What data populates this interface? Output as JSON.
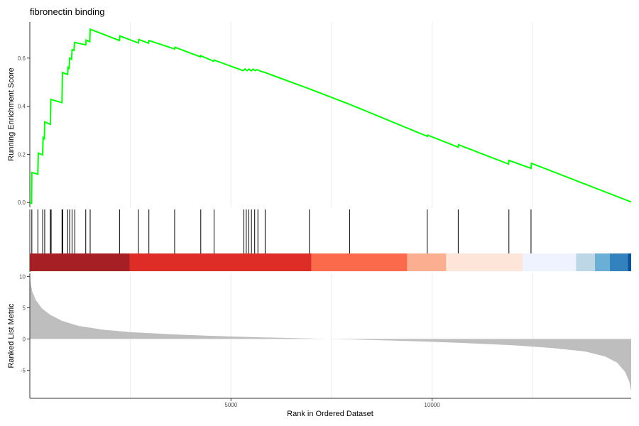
{
  "colors": {
    "es_line": "#00FF00",
    "hit_line": "#000000",
    "metric_fill": "#BEBEBE",
    "grid": "#EBEBEB",
    "axis": "#333333"
  },
  "chart_data": [
    {
      "panel": "running-enrichment",
      "type": "line",
      "title": "fibronectin binding",
      "ylabel": "Running Enrichment Score",
      "xlabel": "",
      "xlim": [
        0,
        14950
      ],
      "ylim": [
        -0.02,
        0.75
      ],
      "grid": true,
      "yticks": [
        0.0,
        0.2,
        0.4,
        0.6
      ],
      "ytick_labels": [
        "0.0",
        "0.2",
        "0.4",
        "0.6"
      ],
      "xgrid": [
        2500,
        5000,
        7500,
        10000,
        12500
      ],
      "points": [
        [
          0,
          -0.003
        ],
        [
          45,
          -0.003
        ],
        [
          50,
          0.125
        ],
        [
          200,
          0.118
        ],
        [
          210,
          0.205
        ],
        [
          320,
          0.198
        ],
        [
          330,
          0.27
        ],
        [
          360,
          0.265
        ],
        [
          370,
          0.335
        ],
        [
          510,
          0.325
        ],
        [
          520,
          0.428
        ],
        [
          800,
          0.415
        ],
        [
          810,
          0.54
        ],
        [
          940,
          0.532
        ],
        [
          950,
          0.562
        ],
        [
          980,
          0.558
        ],
        [
          990,
          0.6
        ],
        [
          1040,
          0.595
        ],
        [
          1050,
          0.635
        ],
        [
          1100,
          0.632
        ],
        [
          1110,
          0.665
        ],
        [
          1390,
          0.655
        ],
        [
          1400,
          0.675
        ],
        [
          1490,
          0.668
        ],
        [
          1500,
          0.72
        ],
        [
          2230,
          0.673
        ],
        [
          2240,
          0.692
        ],
        [
          2700,
          0.663
        ],
        [
          2710,
          0.677
        ],
        [
          2950,
          0.662
        ],
        [
          2960,
          0.673
        ],
        [
          3600,
          0.638
        ],
        [
          3610,
          0.645
        ],
        [
          4240,
          0.605
        ],
        [
          4250,
          0.61
        ],
        [
          4570,
          0.587
        ],
        [
          4580,
          0.592
        ],
        [
          5300,
          0.548
        ],
        [
          5350,
          0.555
        ],
        [
          5400,
          0.548
        ],
        [
          5450,
          0.554
        ],
        [
          5500,
          0.547
        ],
        [
          5550,
          0.554
        ],
        [
          5600,
          0.548
        ],
        [
          5650,
          0.552
        ],
        [
          5750,
          0.545
        ],
        [
          5850,
          0.54
        ],
        [
          6950,
          0.472
        ],
        [
          7950,
          0.408
        ],
        [
          9880,
          0.275
        ],
        [
          9890,
          0.28
        ],
        [
          10650,
          0.23
        ],
        [
          10660,
          0.24
        ],
        [
          11900,
          0.16
        ],
        [
          11910,
          0.175
        ],
        [
          12460,
          0.142
        ],
        [
          12470,
          0.163
        ],
        [
          14950,
          0.002
        ]
      ]
    },
    {
      "panel": "hit-positions",
      "type": "barcode",
      "hits": [
        0,
        50,
        200,
        320,
        370,
        510,
        530,
        800,
        820,
        940,
        990,
        1050,
        1120,
        1390,
        1500,
        2230,
        2700,
        2960,
        3600,
        4250,
        4580,
        5320,
        5380,
        5440,
        5510,
        5590,
        5670,
        5850,
        6950,
        7950,
        9880,
        10650,
        11910,
        12460
      ]
    },
    {
      "panel": "rank-color-bar",
      "type": "heatmap",
      "segments": [
        {
          "from": 0,
          "to": 2480,
          "color": "#A51F25"
        },
        {
          "from": 2480,
          "to": 7000,
          "color": "#DE2D26"
        },
        {
          "from": 7000,
          "to": 9380,
          "color": "#FB6A4A"
        },
        {
          "from": 9380,
          "to": 10350,
          "color": "#FCAE91"
        },
        {
          "from": 10350,
          "to": 12250,
          "color": "#FEE5D9"
        },
        {
          "from": 12250,
          "to": 13580,
          "color": "#EFF3FF"
        },
        {
          "from": 13580,
          "to": 14050,
          "color": "#BDD7E7"
        },
        {
          "from": 14050,
          "to": 14420,
          "color": "#6BAED6"
        },
        {
          "from": 14420,
          "to": 14870,
          "color": "#3182BD"
        },
        {
          "from": 14870,
          "to": 14950,
          "color": "#08519C"
        }
      ]
    },
    {
      "panel": "ranked-list-metric",
      "type": "area",
      "ylabel": "Ranked List Metric",
      "xlabel": "Rank in Ordered Dataset",
      "xlim": [
        0,
        14950
      ],
      "ylim": [
        -9.5,
        10.5
      ],
      "grid": true,
      "yticks": [
        -5,
        0,
        5,
        10
      ],
      "ytick_labels": [
        "-5",
        "0",
        "5",
        "10"
      ],
      "xticks": [
        5000,
        10000
      ],
      "xtick_labels": [
        "5000",
        "10000"
      ],
      "points": [
        [
          0,
          10.3
        ],
        [
          20,
          9.0
        ],
        [
          60,
          7.6
        ],
        [
          150,
          6.2
        ],
        [
          300,
          4.9
        ],
        [
          500,
          3.9
        ],
        [
          800,
          2.9
        ],
        [
          1200,
          2.1
        ],
        [
          1800,
          1.5
        ],
        [
          2500,
          1.1
        ],
        [
          3500,
          0.75
        ],
        [
          4500,
          0.5
        ],
        [
          5500,
          0.3
        ],
        [
          6500,
          0.15
        ],
        [
          7300,
          0.02
        ],
        [
          8000,
          -0.08
        ],
        [
          9000,
          -0.25
        ],
        [
          10000,
          -0.45
        ],
        [
          11000,
          -0.7
        ],
        [
          12000,
          -1.0
        ],
        [
          13000,
          -1.45
        ],
        [
          13800,
          -2.0
        ],
        [
          14300,
          -2.8
        ],
        [
          14600,
          -3.8
        ],
        [
          14800,
          -5.3
        ],
        [
          14900,
          -6.8
        ],
        [
          14950,
          -8.4
        ]
      ]
    }
  ]
}
